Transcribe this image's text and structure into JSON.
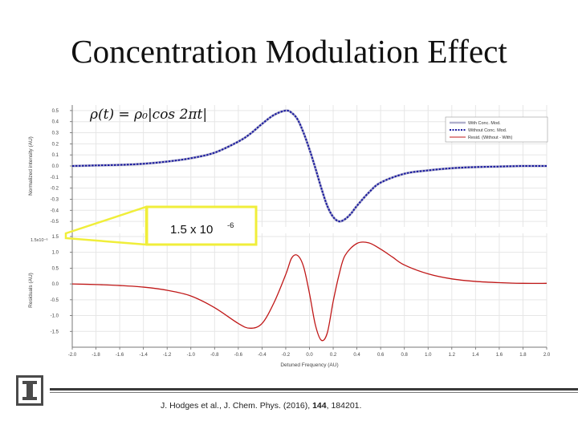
{
  "slide": {
    "title": "Concentration Modulation Effect",
    "citation_prefix": "J. Hodges et al., J. Chem. Phys. (2016), ",
    "citation_volume": "144",
    "citation_suffix": ", 184201."
  },
  "colors": {
    "with_conc": "#b0b0cc",
    "without_conc": "#1a1aa0",
    "residual": "#c01818",
    "highlight": "#f0ee3a"
  },
  "chart_data": {
    "type": "line",
    "xlabel": "Detuned Frequency (AU)",
    "xlim": [
      -2.0,
      2.0
    ],
    "x_ticks": [
      "-2.0",
      "-1.8",
      "-1.6",
      "-1.4",
      "-1.2",
      "-1.0",
      "-0.8",
      "-0.6",
      "-0.4",
      "-0.2",
      "0.0",
      "0.2",
      "0.4",
      "0.6",
      "0.8",
      "1.0",
      "1.2",
      "1.4",
      "1.6",
      "1.8",
      "2.0"
    ],
    "formula": "ρ(t) = ρ₀|cos 2πt|",
    "legend_position": "top-right",
    "legend": [
      "With Conc. Mod.",
      "Without Conc. Mod.",
      "Resid. (Without - With)"
    ],
    "top_panel": {
      "ylabel": "Normalized intensity (AU)",
      "ylim": [
        -0.55,
        0.55
      ],
      "y_ticks": [
        "0.5",
        "0.4",
        "0.3",
        "0.2",
        "0.1",
        "0.0",
        "-0.1",
        "-0.2",
        "-0.3",
        "-0.4",
        "-0.5"
      ],
      "series": [
        {
          "name": "With Conc. Mod.",
          "x": [
            -2.0,
            -1.8,
            -1.6,
            -1.4,
            -1.2,
            -1.0,
            -0.8,
            -0.6,
            -0.5,
            -0.4,
            -0.3,
            -0.2,
            -0.15,
            -0.1,
            -0.05,
            0.0,
            0.05,
            0.1,
            0.15,
            0.2,
            0.25,
            0.3,
            0.35,
            0.4,
            0.5,
            0.6,
            0.8,
            1.0,
            1.2,
            1.4,
            1.6,
            1.8,
            2.0
          ],
          "y": [
            0.0,
            0.005,
            0.01,
            0.02,
            0.04,
            0.07,
            0.12,
            0.22,
            0.29,
            0.38,
            0.46,
            0.5,
            0.48,
            0.42,
            0.3,
            0.15,
            -0.02,
            -0.2,
            -0.36,
            -0.46,
            -0.5,
            -0.48,
            -0.43,
            -0.36,
            -0.24,
            -0.15,
            -0.07,
            -0.04,
            -0.02,
            -0.01,
            -0.005,
            0.0,
            0.0
          ]
        },
        {
          "name": "Without Conc. Mod.",
          "x": [
            -2.0,
            -1.8,
            -1.6,
            -1.4,
            -1.2,
            -1.0,
            -0.8,
            -0.6,
            -0.5,
            -0.4,
            -0.3,
            -0.2,
            -0.15,
            -0.1,
            -0.05,
            0.0,
            0.05,
            0.1,
            0.15,
            0.2,
            0.25,
            0.3,
            0.35,
            0.4,
            0.5,
            0.6,
            0.8,
            1.0,
            1.2,
            1.4,
            1.6,
            1.8,
            2.0
          ],
          "y": [
            0.0,
            0.005,
            0.01,
            0.02,
            0.04,
            0.07,
            0.12,
            0.22,
            0.29,
            0.38,
            0.46,
            0.5,
            0.48,
            0.42,
            0.3,
            0.15,
            -0.02,
            -0.2,
            -0.36,
            -0.46,
            -0.5,
            -0.48,
            -0.43,
            -0.36,
            -0.24,
            -0.15,
            -0.07,
            -0.04,
            -0.02,
            -0.01,
            -0.005,
            0.0,
            0.0
          ]
        }
      ]
    },
    "bottom_panel": {
      "ylabel": "Residuals (AU)",
      "ylim": [
        -2.0,
        1.6
      ],
      "y_ticks": [
        "1.5",
        "1.0",
        "0.5",
        "0.0",
        "-0.5",
        "-1.0",
        "-1.5"
      ],
      "scale_label": "1.5x10⁻⁶",
      "highlight_label": "1.5 x 10",
      "highlight_exponent": "-6",
      "series": [
        {
          "name": "Resid. (Without - With)",
          "x": [
            -2.0,
            -1.8,
            -1.6,
            -1.4,
            -1.2,
            -1.0,
            -0.8,
            -0.6,
            -0.5,
            -0.4,
            -0.3,
            -0.2,
            -0.15,
            -0.1,
            -0.05,
            0.0,
            0.05,
            0.1,
            0.15,
            0.2,
            0.25,
            0.3,
            0.4,
            0.5,
            0.6,
            0.7,
            0.8,
            1.0,
            1.2,
            1.4,
            1.6,
            1.8,
            2.0
          ],
          "y": [
            0.0,
            -0.02,
            -0.05,
            -0.1,
            -0.2,
            -0.38,
            -0.75,
            -1.25,
            -1.4,
            -1.25,
            -0.6,
            0.3,
            0.82,
            0.9,
            0.55,
            -0.3,
            -1.3,
            -1.78,
            -1.55,
            -0.55,
            0.3,
            0.9,
            1.28,
            1.3,
            1.1,
            0.85,
            0.6,
            0.32,
            0.16,
            0.08,
            0.04,
            0.02,
            0.02
          ]
        }
      ]
    }
  }
}
